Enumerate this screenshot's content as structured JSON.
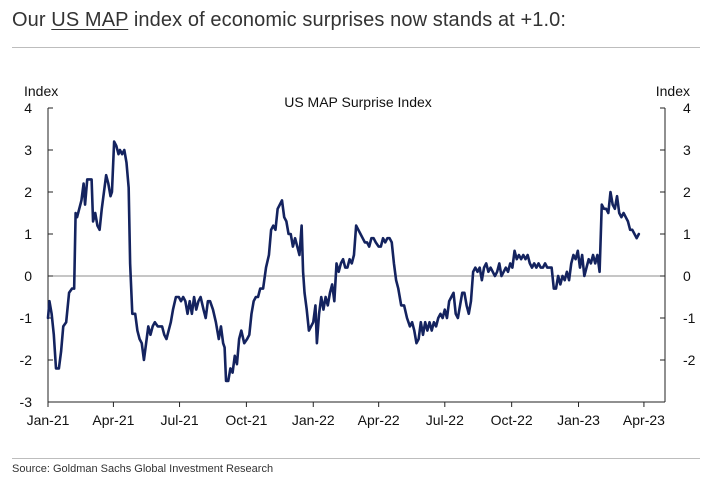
{
  "headline": {
    "prefix": "Our ",
    "link_text": "US MAP",
    "suffix": " index of economic surprises now stands at +1.0:"
  },
  "source_note": "Source: Goldman Sachs Global Investment Research",
  "colors": {
    "line": "#14235f",
    "zero_line": "#8c8c8c",
    "axis": "#222222",
    "rule": "#bdbdbd"
  },
  "chart_data": {
    "type": "line",
    "title": "US MAP Surprise Index",
    "left_axis_label": "Index",
    "right_axis_label": "Index",
    "ylim": [
      -3,
      4
    ],
    "yticks": [
      "4",
      "3",
      "2",
      "1",
      "0",
      "-1",
      "-2",
      "-3"
    ],
    "right_yticks": [
      "4",
      "3",
      "2",
      "1",
      "0",
      "-1",
      "-2"
    ],
    "xlim": [
      "2021-01-01",
      "2023-04-30"
    ],
    "xticks": [
      {
        "date": "2021-01-01",
        "label": "Jan-21"
      },
      {
        "date": "2021-04-01",
        "label": "Apr-21"
      },
      {
        "date": "2021-07-01",
        "label": "Jul-21"
      },
      {
        "date": "2021-10-01",
        "label": "Oct-21"
      },
      {
        "date": "2022-01-01",
        "label": "Jan-22"
      },
      {
        "date": "2022-04-01",
        "label": "Apr-22"
      },
      {
        "date": "2022-07-01",
        "label": "Jul-22"
      },
      {
        "date": "2022-10-01",
        "label": "Oct-22"
      },
      {
        "date": "2023-01-01",
        "label": "Jan-23"
      },
      {
        "date": "2023-04-01",
        "label": "Apr-23"
      }
    ],
    "series": [
      {
        "points": [
          [
            "2021-01-01",
            -1.0
          ],
          [
            "2021-01-03",
            -0.6
          ],
          [
            "2021-01-06",
            -0.9
          ],
          [
            "2021-01-09",
            -1.4
          ],
          [
            "2021-01-12",
            -2.2
          ],
          [
            "2021-01-16",
            -2.2
          ],
          [
            "2021-01-19",
            -1.8
          ],
          [
            "2021-01-22",
            -1.2
          ],
          [
            "2021-01-26",
            -1.1
          ],
          [
            "2021-01-30",
            -0.4
          ],
          [
            "2021-02-03",
            -0.3
          ],
          [
            "2021-02-06",
            -0.3
          ],
          [
            "2021-02-08",
            1.5
          ],
          [
            "2021-02-10",
            1.4
          ],
          [
            "2021-02-13",
            1.6
          ],
          [
            "2021-02-16",
            1.8
          ],
          [
            "2021-02-19",
            2.2
          ],
          [
            "2021-02-21",
            1.7
          ],
          [
            "2021-02-24",
            2.3
          ],
          [
            "2021-02-27",
            2.3
          ],
          [
            "2021-03-02",
            2.3
          ],
          [
            "2021-03-04",
            1.3
          ],
          [
            "2021-03-07",
            1.5
          ],
          [
            "2021-03-10",
            1.2
          ],
          [
            "2021-03-13",
            1.1
          ],
          [
            "2021-03-16",
            1.6
          ],
          [
            "2021-03-19",
            2.0
          ],
          [
            "2021-03-22",
            2.4
          ],
          [
            "2021-03-25",
            2.2
          ],
          [
            "2021-03-28",
            1.9
          ],
          [
            "2021-03-30",
            2.0
          ],
          [
            "2021-04-02",
            3.2
          ],
          [
            "2021-04-05",
            3.1
          ],
          [
            "2021-04-08",
            2.9
          ],
          [
            "2021-04-10",
            3.0
          ],
          [
            "2021-04-13",
            2.9
          ],
          [
            "2021-04-16",
            3.0
          ],
          [
            "2021-04-19",
            2.7
          ],
          [
            "2021-04-22",
            2.1
          ],
          [
            "2021-04-24",
            0.3
          ],
          [
            "2021-04-27",
            -0.9
          ],
          [
            "2021-05-01",
            -0.9
          ],
          [
            "2021-05-04",
            -1.3
          ],
          [
            "2021-05-07",
            -1.5
          ],
          [
            "2021-05-10",
            -1.6
          ],
          [
            "2021-05-13",
            -2.0
          ],
          [
            "2021-05-16",
            -1.6
          ],
          [
            "2021-05-19",
            -1.2
          ],
          [
            "2021-05-22",
            -1.4
          ],
          [
            "2021-05-25",
            -1.2
          ],
          [
            "2021-05-28",
            -1.1
          ],
          [
            "2021-06-01",
            -1.2
          ],
          [
            "2021-06-04",
            -1.2
          ],
          [
            "2021-06-07",
            -1.2
          ],
          [
            "2021-06-10",
            -1.4
          ],
          [
            "2021-06-13",
            -1.5
          ],
          [
            "2021-06-16",
            -1.3
          ],
          [
            "2021-06-19",
            -1.1
          ],
          [
            "2021-06-22",
            -0.8
          ],
          [
            "2021-06-26",
            -0.5
          ],
          [
            "2021-06-30",
            -0.5
          ],
          [
            "2021-07-03",
            -0.6
          ],
          [
            "2021-07-06",
            -0.5
          ],
          [
            "2021-07-09",
            -0.6
          ],
          [
            "2021-07-12",
            -0.9
          ],
          [
            "2021-07-15",
            -0.6
          ],
          [
            "2021-07-18",
            -0.9
          ],
          [
            "2021-07-21",
            -0.5
          ],
          [
            "2021-07-24",
            -0.8
          ],
          [
            "2021-07-27",
            -0.6
          ],
          [
            "2021-07-30",
            -0.5
          ],
          [
            "2021-08-03",
            -0.8
          ],
          [
            "2021-08-06",
            -1.0
          ],
          [
            "2021-08-09",
            -0.6
          ],
          [
            "2021-08-12",
            -0.6
          ],
          [
            "2021-08-16",
            -0.8
          ],
          [
            "2021-08-20",
            -1.1
          ],
          [
            "2021-08-24",
            -1.5
          ],
          [
            "2021-08-27",
            -1.2
          ],
          [
            "2021-08-30",
            -1.6
          ],
          [
            "2021-09-01",
            -1.7
          ],
          [
            "2021-09-03",
            -2.5
          ],
          [
            "2021-09-06",
            -2.5
          ],
          [
            "2021-09-09",
            -2.2
          ],
          [
            "2021-09-12",
            -2.3
          ],
          [
            "2021-09-15",
            -1.9
          ],
          [
            "2021-09-18",
            -2.1
          ],
          [
            "2021-09-21",
            -1.5
          ],
          [
            "2021-09-24",
            -1.3
          ],
          [
            "2021-09-28",
            -1.6
          ],
          [
            "2021-10-02",
            -1.5
          ],
          [
            "2021-10-05",
            -1.4
          ],
          [
            "2021-10-08",
            -0.9
          ],
          [
            "2021-10-11",
            -0.6
          ],
          [
            "2021-10-14",
            -0.5
          ],
          [
            "2021-10-17",
            -0.5
          ],
          [
            "2021-10-20",
            -0.3
          ],
          [
            "2021-10-24",
            -0.3
          ],
          [
            "2021-10-28",
            0.2
          ],
          [
            "2021-11-01",
            0.5
          ],
          [
            "2021-11-04",
            1.1
          ],
          [
            "2021-11-07",
            1.2
          ],
          [
            "2021-11-10",
            1.1
          ],
          [
            "2021-11-13",
            1.6
          ],
          [
            "2021-11-16",
            1.7
          ],
          [
            "2021-11-19",
            1.8
          ],
          [
            "2021-11-22",
            1.4
          ],
          [
            "2021-11-25",
            1.3
          ],
          [
            "2021-11-28",
            1.0
          ],
          [
            "2021-12-01",
            1.0
          ],
          [
            "2021-12-04",
            0.7
          ],
          [
            "2021-12-07",
            0.9
          ],
          [
            "2021-12-10",
            0.7
          ],
          [
            "2021-12-13",
            0.5
          ],
          [
            "2021-12-16",
            1.2
          ],
          [
            "2021-12-18",
            0.1
          ],
          [
            "2021-12-20",
            -0.4
          ],
          [
            "2021-12-23",
            -0.8
          ],
          [
            "2021-12-26",
            -1.3
          ],
          [
            "2021-12-29",
            -1.2
          ],
          [
            "2022-01-01",
            -1.1
          ],
          [
            "2022-01-04",
            -0.7
          ],
          [
            "2022-01-06",
            -1.6
          ],
          [
            "2022-01-09",
            -0.9
          ],
          [
            "2022-01-12",
            -0.5
          ],
          [
            "2022-01-15",
            -0.8
          ],
          [
            "2022-01-18",
            -0.5
          ],
          [
            "2022-01-21",
            -0.7
          ],
          [
            "2022-01-24",
            -0.4
          ],
          [
            "2022-01-27",
            -0.2
          ],
          [
            "2022-01-30",
            -0.6
          ],
          [
            "2022-02-02",
            0.3
          ],
          [
            "2022-02-05",
            0.1
          ],
          [
            "2022-02-08",
            0.3
          ],
          [
            "2022-02-11",
            0.4
          ],
          [
            "2022-02-14",
            0.2
          ],
          [
            "2022-02-17",
            0.2
          ],
          [
            "2022-02-20",
            0.4
          ],
          [
            "2022-02-23",
            0.3
          ],
          [
            "2022-02-26",
            0.5
          ],
          [
            "2022-03-01",
            1.2
          ],
          [
            "2022-03-04",
            1.1
          ],
          [
            "2022-03-07",
            1.0
          ],
          [
            "2022-03-10",
            0.9
          ],
          [
            "2022-03-13",
            0.8
          ],
          [
            "2022-03-16",
            0.8
          ],
          [
            "2022-03-19",
            0.7
          ],
          [
            "2022-03-22",
            0.9
          ],
          [
            "2022-03-25",
            0.9
          ],
          [
            "2022-03-28",
            0.8
          ],
          [
            "2022-04-01",
            0.7
          ],
          [
            "2022-04-04",
            0.7
          ],
          [
            "2022-04-07",
            0.9
          ],
          [
            "2022-04-10",
            0.8
          ],
          [
            "2022-04-13",
            0.9
          ],
          [
            "2022-04-16",
            0.9
          ],
          [
            "2022-04-19",
            0.8
          ],
          [
            "2022-04-22",
            0.3
          ],
          [
            "2022-04-25",
            -0.1
          ],
          [
            "2022-04-28",
            -0.3
          ],
          [
            "2022-05-02",
            -0.7
          ],
          [
            "2022-05-06",
            -0.7
          ],
          [
            "2022-05-10",
            -1.0
          ],
          [
            "2022-05-14",
            -1.2
          ],
          [
            "2022-05-17",
            -1.1
          ],
          [
            "2022-05-20",
            -1.3
          ],
          [
            "2022-05-23",
            -1.6
          ],
          [
            "2022-05-26",
            -1.5
          ],
          [
            "2022-05-29",
            -1.1
          ],
          [
            "2022-06-01",
            -1.4
          ],
          [
            "2022-06-04",
            -1.1
          ],
          [
            "2022-06-07",
            -1.3
          ],
          [
            "2022-06-10",
            -1.1
          ],
          [
            "2022-06-13",
            -1.3
          ],
          [
            "2022-06-16",
            -1.1
          ],
          [
            "2022-06-19",
            -1.2
          ],
          [
            "2022-06-22",
            -1.0
          ],
          [
            "2022-06-25",
            -0.9
          ],
          [
            "2022-06-28",
            -1.0
          ],
          [
            "2022-07-01",
            -0.8
          ],
          [
            "2022-07-04",
            -1.0
          ],
          [
            "2022-07-07",
            -0.6
          ],
          [
            "2022-07-10",
            -0.5
          ],
          [
            "2022-07-13",
            -0.4
          ],
          [
            "2022-07-16",
            -0.9
          ],
          [
            "2022-07-19",
            -1.0
          ],
          [
            "2022-07-22",
            -0.7
          ],
          [
            "2022-07-25",
            -0.4
          ],
          [
            "2022-07-28",
            -0.4
          ],
          [
            "2022-07-31",
            -0.7
          ],
          [
            "2022-08-03",
            -0.9
          ],
          [
            "2022-08-06",
            -0.6
          ],
          [
            "2022-08-09",
            0.1
          ],
          [
            "2022-08-12",
            0.2
          ],
          [
            "2022-08-15",
            0.1
          ],
          [
            "2022-08-18",
            0.2
          ],
          [
            "2022-08-21",
            -0.1
          ],
          [
            "2022-08-24",
            0.2
          ],
          [
            "2022-08-27",
            0.3
          ],
          [
            "2022-08-30",
            0.1
          ],
          [
            "2022-09-02",
            0.2
          ],
          [
            "2022-09-05",
            0.1
          ],
          [
            "2022-09-08",
            0.0
          ],
          [
            "2022-09-11",
            0.1
          ],
          [
            "2022-09-14",
            0.3
          ],
          [
            "2022-09-17",
            0.0
          ],
          [
            "2022-09-20",
            0.1
          ],
          [
            "2022-09-23",
            0.2
          ],
          [
            "2022-09-26",
            0.1
          ],
          [
            "2022-09-29",
            0.3
          ],
          [
            "2022-10-02",
            0.2
          ],
          [
            "2022-10-05",
            0.6
          ],
          [
            "2022-10-08",
            0.4
          ],
          [
            "2022-10-11",
            0.5
          ],
          [
            "2022-10-14",
            0.4
          ],
          [
            "2022-10-17",
            0.5
          ],
          [
            "2022-10-20",
            0.4
          ],
          [
            "2022-10-23",
            0.5
          ],
          [
            "2022-10-26",
            0.3
          ],
          [
            "2022-10-29",
            0.2
          ],
          [
            "2022-11-01",
            0.3
          ],
          [
            "2022-11-04",
            0.2
          ],
          [
            "2022-11-07",
            0.3
          ],
          [
            "2022-11-10",
            0.2
          ],
          [
            "2022-11-13",
            0.2
          ],
          [
            "2022-11-16",
            0.3
          ],
          [
            "2022-11-19",
            0.2
          ],
          [
            "2022-11-22",
            0.2
          ],
          [
            "2022-11-25",
            0.2
          ],
          [
            "2022-11-28",
            -0.3
          ],
          [
            "2022-12-01",
            -0.3
          ],
          [
            "2022-12-04",
            0.0
          ],
          [
            "2022-12-07",
            -0.2
          ],
          [
            "2022-12-10",
            0.0
          ],
          [
            "2022-12-13",
            -0.1
          ],
          [
            "2022-12-16",
            0.1
          ],
          [
            "2022-12-19",
            -0.1
          ],
          [
            "2022-12-22",
            0.3
          ],
          [
            "2022-12-25",
            0.5
          ],
          [
            "2022-12-28",
            0.4
          ],
          [
            "2022-12-31",
            0.6
          ],
          [
            "2023-01-03",
            0.2
          ],
          [
            "2023-01-06",
            0.5
          ],
          [
            "2023-01-09",
            0.0
          ],
          [
            "2023-01-12",
            0.2
          ],
          [
            "2023-01-15",
            0.4
          ],
          [
            "2023-01-18",
            0.3
          ],
          [
            "2023-01-21",
            0.5
          ],
          [
            "2023-01-24",
            0.3
          ],
          [
            "2023-01-27",
            0.5
          ],
          [
            "2023-01-30",
            0.1
          ],
          [
            "2023-02-02",
            1.7
          ],
          [
            "2023-02-05",
            1.6
          ],
          [
            "2023-02-08",
            1.6
          ],
          [
            "2023-02-11",
            1.5
          ],
          [
            "2023-02-14",
            2.0
          ],
          [
            "2023-02-17",
            1.7
          ],
          [
            "2023-02-20",
            1.6
          ],
          [
            "2023-02-23",
            1.9
          ],
          [
            "2023-02-26",
            1.5
          ],
          [
            "2023-03-01",
            1.4
          ],
          [
            "2023-03-04",
            1.5
          ],
          [
            "2023-03-07",
            1.4
          ],
          [
            "2023-03-10",
            1.3
          ],
          [
            "2023-03-13",
            1.1
          ],
          [
            "2023-03-16",
            1.1
          ],
          [
            "2023-03-19",
            1.0
          ],
          [
            "2023-03-22",
            0.9
          ],
          [
            "2023-03-25",
            1.0
          ]
        ]
      }
    ]
  }
}
